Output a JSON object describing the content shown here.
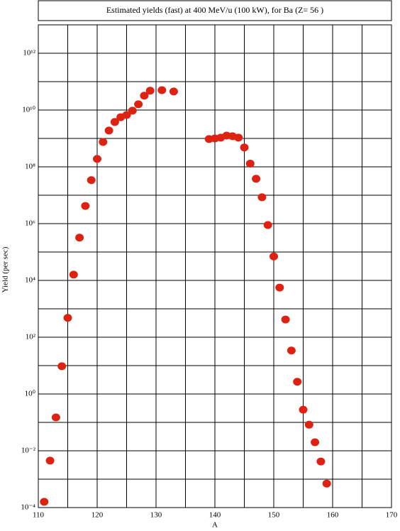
{
  "chart_data": {
    "type": "scatter",
    "title": "Estimated yields (fast) at 400 MeV/u (100 kW), for Ba (Z= 56 )",
    "x_label": "A",
    "y_label": "Yield (per sec)",
    "x": [
      111,
      112,
      113,
      114,
      115,
      116,
      117,
      118,
      119,
      120,
      121,
      122,
      123,
      124,
      125,
      126,
      127,
      128,
      129,
      131,
      133,
      139,
      140,
      141,
      142,
      143,
      144,
      145,
      146,
      147,
      148,
      149,
      150,
      151,
      152,
      153,
      154,
      155,
      156,
      157,
      158,
      159
    ],
    "values": [
      0.00016,
      0.0045,
      0.15,
      9.5,
      480,
      16000,
      320000,
      4200000,
      34000000,
      190000000,
      750000000,
      1900000000,
      3800000000,
      5600000000,
      6700000000,
      9500000000,
      16000000000,
      32000000000,
      48000000000,
      50000000000,
      45000000000,
      950000000,
      1000000000,
      1070000000,
      1260000000,
      1200000000,
      1070000000,
      480000000,
      130000000,
      38000000,
      8500000,
      890000,
      70000,
      5600,
      420,
      34,
      2.7,
      0.28,
      0.083,
      0.02,
      0.0042,
      0.0007
    ],
    "color": "#dd2211",
    "xlim": [
      110,
      170
    ],
    "xticks": [
      110,
      120,
      130,
      140,
      150,
      160,
      170
    ],
    "xgrid_minor": [
      115,
      125,
      135,
      145,
      155,
      165
    ],
    "ylog": true,
    "ylim": [
      0.0001,
      10000000000000
    ],
    "yticks": [
      {
        "value": 0.0001,
        "label": "10⁻⁴"
      },
      {
        "value": 0.01,
        "label": "10⁻²"
      },
      {
        "value": 1,
        "label": "10⁰"
      },
      {
        "value": 100,
        "label": "10²"
      },
      {
        "value": 10000,
        "label": "10⁴"
      },
      {
        "value": 1000000,
        "label": "10⁶"
      },
      {
        "value": 100000000,
        "label": "10⁸"
      },
      {
        "value": 10000000000,
        "label": "10¹⁰"
      },
      {
        "value": 1000000000000,
        "label": "10¹²"
      }
    ],
    "ygrid_minor": [
      0.001,
      0.1,
      10,
      1000,
      100000,
      10000000,
      1000000000,
      100000000000,
      10000000000000
    ],
    "grid": true
  }
}
